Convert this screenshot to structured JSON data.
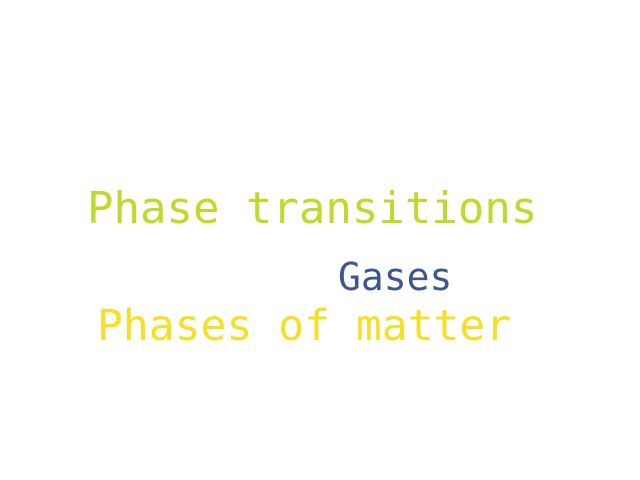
{
  "words": [
    {
      "text": "Phase transitions",
      "color": "#bcdb2a"
    },
    {
      "text": "Gases",
      "color": "#3d5591"
    },
    {
      "text": "Phases of matter",
      "color": "#f5e027"
    }
  ]
}
